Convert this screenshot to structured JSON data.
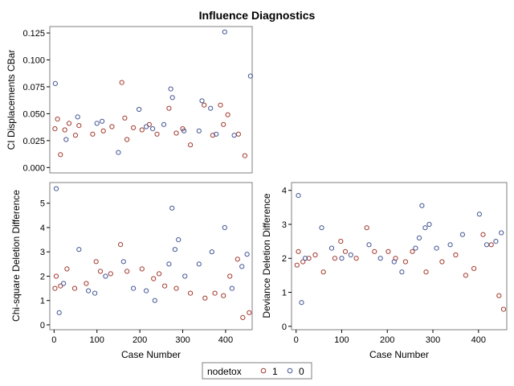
{
  "title": "Influence Diagnostics",
  "colors": {
    "nodetox_1": "#a23a2e",
    "nodetox_0": "#445694",
    "frame": "#7f7f7f"
  },
  "legend": {
    "title": "nodetox",
    "items": [
      {
        "label": "1"
      },
      {
        "label": "0"
      }
    ]
  },
  "chart_data": [
    {
      "type": "scatter",
      "id": "cbar",
      "title": "",
      "xlabel": "",
      "ylabel": "CI Displacements CBar",
      "xlim": [
        -10,
        462
      ],
      "ylim": [
        -0.005,
        0.131
      ],
      "xticks": [],
      "yticks": [
        0.0,
        0.025,
        0.05,
        0.075,
        0.1,
        0.125
      ],
      "ytick_labels": [
        "0.000",
        "0.025",
        "0.050",
        "0.075",
        "0.100",
        "0.125"
      ],
      "series": [
        {
          "name": "1",
          "points": [
            [
              2,
              0.036
            ],
            [
              8,
              0.045
            ],
            [
              15,
              0.012
            ],
            [
              25,
              0.035
            ],
            [
              35,
              0.041
            ],
            [
              50,
              0.03
            ],
            [
              58,
              0.039
            ],
            [
              90,
              0.031
            ],
            [
              115,
              0.034
            ],
            [
              135,
              0.038
            ],
            [
              158,
              0.079
            ],
            [
              165,
              0.046
            ],
            [
              170,
              0.026
            ],
            [
              185,
              0.037
            ],
            [
              205,
              0.035
            ],
            [
              222,
              0.04
            ],
            [
              240,
              0.031
            ],
            [
              268,
              0.055
            ],
            [
              285,
              0.032
            ],
            [
              300,
              0.036
            ],
            [
              318,
              0.021
            ],
            [
              350,
              0.058
            ],
            [
              370,
              0.03
            ],
            [
              388,
              0.058
            ],
            [
              395,
              0.04
            ],
            [
              405,
              0.049
            ],
            [
              430,
              0.031
            ],
            [
              445,
              0.011
            ]
          ]
        },
        {
          "name": "0",
          "points": [
            [
              3,
              0.078
            ],
            [
              28,
              0.026
            ],
            [
              55,
              0.047
            ],
            [
              100,
              0.041
            ],
            [
              112,
              0.043
            ],
            [
              150,
              0.014
            ],
            [
              198,
              0.054
            ],
            [
              215,
              0.038
            ],
            [
              230,
              0.036
            ],
            [
              256,
              0.04
            ],
            [
              272,
              0.073
            ],
            [
              276,
              0.065
            ],
            [
              303,
              0.034
            ],
            [
              338,
              0.034
            ],
            [
              345,
              0.062
            ],
            [
              365,
              0.055
            ],
            [
              378,
              0.031
            ],
            [
              398,
              0.126
            ],
            [
              420,
              0.03
            ],
            [
              458,
              0.085
            ]
          ]
        }
      ]
    },
    {
      "type": "scatter",
      "id": "chisq",
      "title": "",
      "xlabel": "Case Number",
      "ylabel": "Chi-square Deletion Difference",
      "xlim": [
        -10,
        462
      ],
      "ylim": [
        -0.2,
        5.85
      ],
      "xticks": [
        0,
        100,
        200,
        300,
        400
      ],
      "xtick_labels": [
        "0",
        "100",
        "200",
        "300",
        "400"
      ],
      "yticks": [
        0,
        1,
        2,
        3,
        4,
        5
      ],
      "ytick_labels": [
        "0",
        "1",
        "2",
        "3",
        "4",
        "5"
      ],
      "series": [
        {
          "name": "1",
          "points": [
            [
              2,
              1.5
            ],
            [
              5,
              2.0
            ],
            [
              15,
              1.6
            ],
            [
              30,
              2.3
            ],
            [
              48,
              1.5
            ],
            [
              75,
              1.7
            ],
            [
              98,
              2.6
            ],
            [
              108,
              2.2
            ],
            [
              132,
              2.1
            ],
            [
              155,
              3.3
            ],
            [
              170,
              2.2
            ],
            [
              205,
              2.3
            ],
            [
              232,
              1.9
            ],
            [
              245,
              2.1
            ],
            [
              258,
              1.6
            ],
            [
              285,
              1.5
            ],
            [
              318,
              1.3
            ],
            [
              352,
              1.1
            ],
            [
              375,
              1.3
            ],
            [
              395,
              1.2
            ],
            [
              410,
              2.0
            ],
            [
              428,
              2.7
            ],
            [
              440,
              0.3
            ],
            [
              455,
              0.5
            ]
          ]
        },
        {
          "name": "0",
          "points": [
            [
              5,
              5.6
            ],
            [
              12,
              0.5
            ],
            [
              22,
              1.7
            ],
            [
              58,
              3.1
            ],
            [
              80,
              1.4
            ],
            [
              95,
              1.3
            ],
            [
              120,
              2.0
            ],
            [
              162,
              2.6
            ],
            [
              185,
              1.5
            ],
            [
              215,
              1.4
            ],
            [
              235,
              1.0
            ],
            [
              268,
              2.5
            ],
            [
              275,
              4.8
            ],
            [
              282,
              3.1
            ],
            [
              290,
              3.5
            ],
            [
              305,
              2.0
            ],
            [
              338,
              2.5
            ],
            [
              368,
              3.0
            ],
            [
              398,
              4.0
            ],
            [
              415,
              1.5
            ],
            [
              438,
              2.4
            ],
            [
              450,
              2.9
            ]
          ]
        }
      ]
    },
    {
      "type": "scatter",
      "id": "deviance",
      "title": "",
      "xlabel": "Case Number",
      "ylabel": "Deviance Deletion Difference",
      "xlim": [
        -10,
        462
      ],
      "ylim": [
        -0.1,
        4.23
      ],
      "xticks": [
        0,
        100,
        200,
        300,
        400
      ],
      "xtick_labels": [
        "0",
        "100",
        "200",
        "300",
        "400"
      ],
      "yticks": [
        0,
        1,
        2,
        3,
        4
      ],
      "ytick_labels": [
        "0",
        "1",
        "2",
        "3",
        "4"
      ],
      "series": [
        {
          "name": "1",
          "points": [
            [
              2,
              1.8
            ],
            [
              5,
              2.2
            ],
            [
              15,
              1.9
            ],
            [
              28,
              2.0
            ],
            [
              42,
              2.1
            ],
            [
              60,
              1.6
            ],
            [
              85,
              2.0
            ],
            [
              98,
              2.5
            ],
            [
              108,
              2.2
            ],
            [
              132,
              2.0
            ],
            [
              155,
              2.9
            ],
            [
              172,
              2.2
            ],
            [
              202,
              2.2
            ],
            [
              218,
              2.0
            ],
            [
              240,
              1.9
            ],
            [
              255,
              2.2
            ],
            [
              285,
              1.6
            ],
            [
              320,
              1.9
            ],
            [
              350,
              2.1
            ],
            [
              372,
              1.5
            ],
            [
              390,
              1.7
            ],
            [
              410,
              2.7
            ],
            [
              428,
              2.4
            ],
            [
              445,
              0.9
            ],
            [
              455,
              0.5
            ]
          ]
        },
        {
          "name": "0",
          "points": [
            [
              5,
              3.85
            ],
            [
              12,
              0.7
            ],
            [
              20,
              2.0
            ],
            [
              56,
              2.9
            ],
            [
              78,
              2.3
            ],
            [
              100,
              2.0
            ],
            [
              120,
              2.1
            ],
            [
              160,
              2.4
            ],
            [
              185,
              2.0
            ],
            [
              215,
              1.9
            ],
            [
              232,
              1.6
            ],
            [
              262,
              2.3
            ],
            [
              270,
              2.6
            ],
            [
              276,
              3.55
            ],
            [
              283,
              2.9
            ],
            [
              292,
              3.0
            ],
            [
              308,
              2.3
            ],
            [
              338,
              2.4
            ],
            [
              365,
              2.7
            ],
            [
              402,
              3.3
            ],
            [
              418,
              2.4
            ],
            [
              438,
              2.5
            ],
            [
              450,
              2.75
            ]
          ]
        }
      ]
    }
  ]
}
